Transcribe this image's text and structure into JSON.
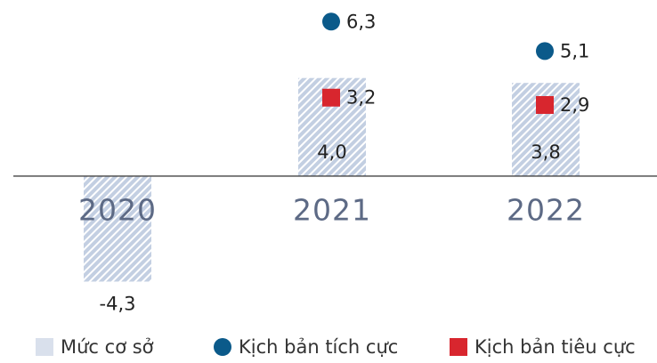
{
  "chart_data": {
    "type": "bar",
    "categories": [
      "2020",
      "2021",
      "2022"
    ],
    "ylim": [
      -4.5,
      7
    ],
    "series": [
      {
        "name": "Mức cơ sở",
        "type": "bar",
        "color": "#c3cfe2",
        "values": [
          -4.3,
          4.0,
          3.8
        ],
        "value_labels": [
          "-4,3",
          "4,0",
          "3,8"
        ]
      },
      {
        "name": "Kịch bản tích cực",
        "type": "scatter",
        "marker": "circle",
        "color": "#0b5a8a",
        "values": [
          null,
          6.3,
          5.1
        ],
        "value_labels": [
          null,
          "6,3",
          "5,1"
        ]
      },
      {
        "name": "Kịch bản tiêu cực",
        "type": "scatter",
        "marker": "square",
        "color": "#d8262e",
        "values": [
          null,
          3.2,
          2.9
        ],
        "value_labels": [
          null,
          "3,2",
          "2,9"
        ]
      }
    ]
  }
}
